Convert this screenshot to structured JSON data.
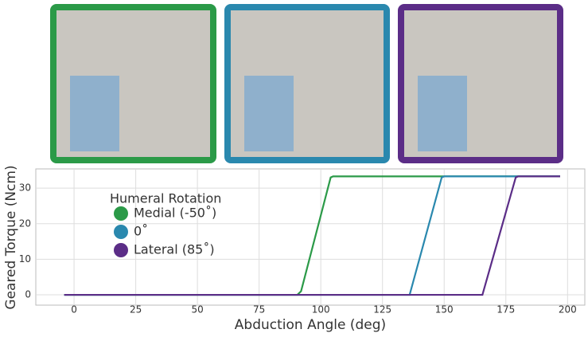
{
  "chart_data": {
    "type": "line",
    "xlabel": "Abduction Angle (deg)",
    "ylabel": "Geared Torque (Ncm)",
    "legend_title": "Humeral Rotation",
    "xlim": [
      -15.5,
      207
    ],
    "ylim": [
      -2.9,
      35.4
    ],
    "xticks": [
      0,
      25,
      50,
      75,
      100,
      125,
      150,
      175,
      200
    ],
    "yticks": [
      0,
      10,
      20,
      30
    ],
    "grid": true,
    "series": [
      {
        "name": "Medial (-50˚)",
        "color": "#2b9a48",
        "x": [
          -4,
          90.5,
          92,
          104,
          105,
          197
        ],
        "values": [
          0,
          0,
          1,
          33,
          33.3,
          33.3
        ]
      },
      {
        "name": "0˚",
        "color": "#2a88ae",
        "x": [
          -4,
          136,
          149,
          150,
          197
        ],
        "values": [
          0,
          0,
          33,
          33.3,
          33.3
        ]
      },
      {
        "name": "Lateral (85˚)",
        "color": "#5b2d87",
        "x": [
          -4,
          165.5,
          179,
          180,
          197
        ],
        "values": [
          0,
          0,
          33,
          33.3,
          33.3
        ]
      }
    ]
  }
}
